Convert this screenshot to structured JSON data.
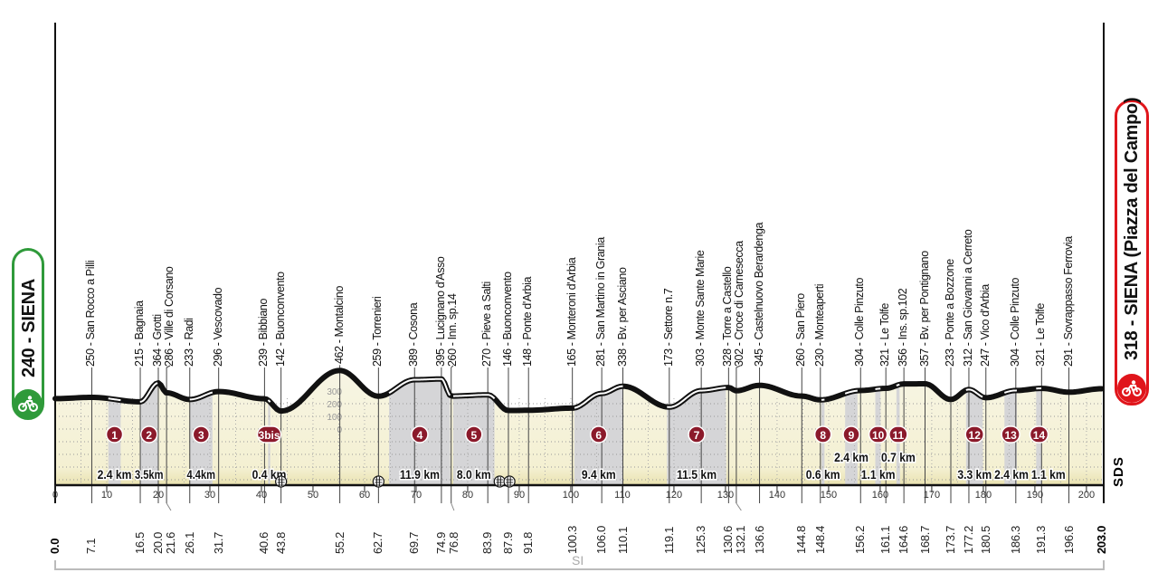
{
  "start": {
    "label": "240 - SIENA",
    "altitude": 240,
    "km": "0.0",
    "color": "#2f9a3a"
  },
  "finish": {
    "label": "318 - SIENA (Piazza del Campo)",
    "altitude": 318,
    "km": "203.0",
    "color": "#e0151b"
  },
  "points": [
    {
      "km": "7.1",
      "alt": 250,
      "label": "250 - San Rocco a Pilli"
    },
    {
      "km": "16.5",
      "alt": 215,
      "label": "215 - Bagnaia"
    },
    {
      "km": "20.0",
      "alt": 364,
      "label": "364 - Grotti"
    },
    {
      "km": "21.6",
      "alt": 286,
      "label": "286 - Ville di Corsano"
    },
    {
      "km": "26.1",
      "alt": 233,
      "label": "233 - Radi"
    },
    {
      "km": "31.7",
      "alt": 296,
      "label": "296 - Vescovado"
    },
    {
      "km": "40.6",
      "alt": 239,
      "label": "239 - Bibbiano"
    },
    {
      "km": "43.8",
      "alt": 142,
      "label": "142 - Buonconvento"
    },
    {
      "km": "55.2",
      "alt": 462,
      "label": "462 - Montalcino"
    },
    {
      "km": "62.7",
      "alt": 259,
      "label": "259 - Torrenieri"
    },
    {
      "km": "69.7",
      "alt": 389,
      "label": "389 - Cosona"
    },
    {
      "km": "74.9",
      "alt": 395,
      "label": "395 - Lucignano d'Asso"
    },
    {
      "km": "76.8",
      "alt": 260,
      "label": "260 - Inn. sp.14"
    },
    {
      "km": "83.9",
      "alt": 270,
      "label": "270 - Pieve a Salti"
    },
    {
      "km": "87.9",
      "alt": 146,
      "label": "146 - Buonconvento"
    },
    {
      "km": "91.8",
      "alt": 148,
      "label": "148 - Ponte d'Arbia"
    },
    {
      "km": "100.3",
      "alt": 165,
      "label": "165 - Monteroni d'Arbia"
    },
    {
      "km": "106.0",
      "alt": 281,
      "label": "281 - San Martino in Grania"
    },
    {
      "km": "110.1",
      "alt": 338,
      "label": "338 - Bv. per Asciano"
    },
    {
      "km": "119.1",
      "alt": 173,
      "label": "173 - Settore n.7"
    },
    {
      "km": "125.3",
      "alt": 303,
      "label": "303 - Monte Sante Marie"
    },
    {
      "km": "130.6",
      "alt": 328,
      "label": "328 - Torre a Castello"
    },
    {
      "km": "132.1",
      "alt": 302,
      "label": "302 - Croce di Carnesecca"
    },
    {
      "km": "136.6",
      "alt": 345,
      "label": "345 - Castelnuovo Berardenga"
    },
    {
      "km": "144.8",
      "alt": 260,
      "label": "260 - San Piero"
    },
    {
      "km": "148.4",
      "alt": 230,
      "label": "230 - Monteaperti"
    },
    {
      "km": "156.2",
      "alt": 304,
      "label": "304 - Colle Pinzuto"
    },
    {
      "km": "161.1",
      "alt": 321,
      "label": "321 - Le Tolfe"
    },
    {
      "km": "164.6",
      "alt": 356,
      "label": "356 - Ins. sp.102"
    },
    {
      "km": "168.7",
      "alt": 357,
      "label": "357 - Bv. per Pontignano"
    },
    {
      "km": "173.7",
      "alt": 233,
      "label": "233 - Ponte a Bozzone"
    },
    {
      "km": "177.2",
      "alt": 312,
      "label": "312 - San Giovanni a Cerreto"
    },
    {
      "km": "180.5",
      "alt": 247,
      "label": "247 - Vico d'Arbia"
    },
    {
      "km": "186.3",
      "alt": 304,
      "label": "304 - Colle Pinzuto"
    },
    {
      "km": "191.3",
      "alt": 321,
      "label": "321 - Le Tolfe"
    },
    {
      "km": "196.6",
      "alt": 291,
      "label": "291 - Sovrappasso Ferrovia"
    }
  ],
  "sectors": [
    {
      "number": "1",
      "length": "2.4 km",
      "length_km": 2.4,
      "center_km": 11.5
    },
    {
      "number": "2",
      "length": "3.5km",
      "length_km": 3.5,
      "center_km": 18.2
    },
    {
      "number": "3",
      "length": "4.4km",
      "length_km": 4.4,
      "center_km": 28.3
    },
    {
      "number": "3bis",
      "length": "0.4 km",
      "length_km": 0.4,
      "center_km": 41.5
    },
    {
      "number": "4",
      "length": "11.9 km",
      "length_km": 11.9,
      "center_km": 70.7
    },
    {
      "number": "5",
      "length": "8.0 km",
      "length_km": 8.0,
      "center_km": 81.2
    },
    {
      "number": "6",
      "length": "9.4 km",
      "length_km": 9.4,
      "center_km": 105.4
    },
    {
      "number": "7",
      "length": "11.5 km",
      "length_km": 11.5,
      "center_km": 124.4
    },
    {
      "number": "8",
      "length": "0.6 km",
      "length_km": 0.6,
      "center_km": 148.9
    },
    {
      "number": "9",
      "length": "2.4 km",
      "length_km": 2.4,
      "center_km": 154.4
    },
    {
      "number": "10",
      "length": "1.1 km",
      "length_km": 1.1,
      "center_km": 159.6
    },
    {
      "number": "11",
      "length": "0.7 km",
      "length_km": 0.7,
      "center_km": 163.5
    },
    {
      "number": "12",
      "length": "3.3 km",
      "length_km": 3.3,
      "center_km": 178.3
    },
    {
      "number": "13",
      "length": "2.4 km",
      "length_km": 2.4,
      "center_km": 185.3
    },
    {
      "number": "14",
      "length": "1.1 km",
      "length_km": 1.1,
      "center_km": 190.8
    }
  ],
  "level_crossings_km": [
    43.8,
    62.7,
    86.2,
    88.1
  ],
  "axis": {
    "ticks": [
      "0",
      "10",
      "20",
      "30",
      "40",
      "50",
      "60",
      "70",
      "80",
      "90",
      "100",
      "110",
      "120",
      "130",
      "140",
      "150",
      "160",
      "170",
      "180",
      "190",
      "200"
    ],
    "max_km": 203
  },
  "elevation_scale": [
    "300",
    "200",
    "100",
    "0"
  ],
  "province_label": "SI",
  "logo": "SDS",
  "colors": {
    "sector_badge": "#8b1a2b",
    "sector_band": "#d5d5d7",
    "terrain": "#f7f5e4",
    "profile": "#111111"
  }
}
